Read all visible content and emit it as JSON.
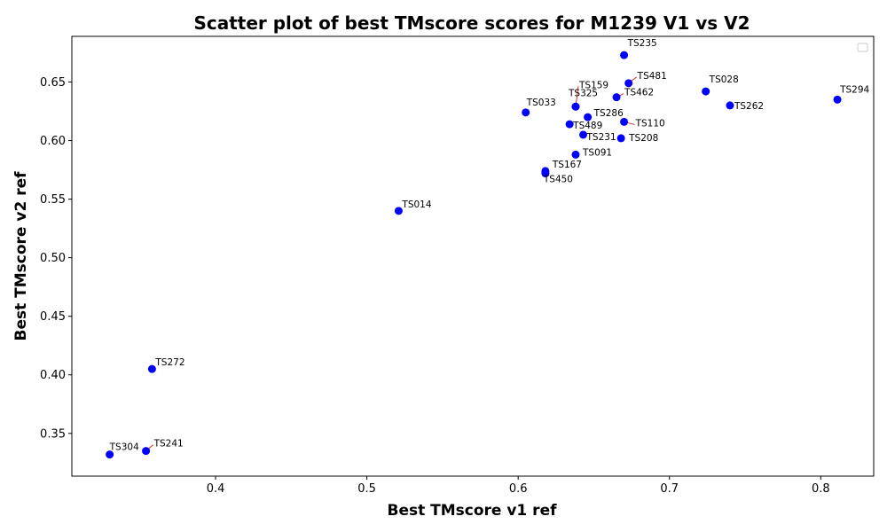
{
  "chart_data": {
    "type": "scatter",
    "title": "Scatter plot of best TMscore scores for M1239 V1 vs V2",
    "xlabel": "Best TMscore v1 ref",
    "ylabel": "Best TMscore v2 ref",
    "xlim": [
      0.305,
      0.835
    ],
    "ylim": [
      0.3135,
      0.689
    ],
    "xticks": [
      0.4,
      0.5,
      0.6,
      0.7,
      0.8
    ],
    "xtick_labels": [
      "0.4",
      "0.5",
      "0.6",
      "0.7",
      "0.8"
    ],
    "yticks": [
      0.35,
      0.4,
      0.45,
      0.5,
      0.55,
      0.6,
      0.65
    ],
    "ytick_labels": [
      "0.35",
      "0.40",
      "0.45",
      "0.50",
      "0.55",
      "0.60",
      "0.65"
    ],
    "grid": false,
    "legend": "top-right, empty",
    "marker_color": "#0000ff",
    "leader_line_color": "#d62728",
    "points": [
      {
        "label": "TS235",
        "x": 0.67,
        "y": 0.673
      },
      {
        "label": "TS481",
        "x": 0.673,
        "y": 0.649
      },
      {
        "label": "TS028",
        "x": 0.724,
        "y": 0.642
      },
      {
        "label": "TS294",
        "x": 0.811,
        "y": 0.635
      },
      {
        "label": "TS262",
        "x": 0.74,
        "y": 0.63
      },
      {
        "label": "TS462",
        "x": 0.665,
        "y": 0.637
      },
      {
        "label": "TS159",
        "x": 0.638,
        "y": 0.629
      },
      {
        "label": "TS325",
        "x": 0.638,
        "y": 0.629
      },
      {
        "label": "TS033",
        "x": 0.605,
        "y": 0.624
      },
      {
        "label": "TS286",
        "x": 0.646,
        "y": 0.62
      },
      {
        "label": "TS110",
        "x": 0.67,
        "y": 0.616
      },
      {
        "label": "TS489",
        "x": 0.634,
        "y": 0.614
      },
      {
        "label": "TS231",
        "x": 0.643,
        "y": 0.605
      },
      {
        "label": "TS208",
        "x": 0.668,
        "y": 0.602
      },
      {
        "label": "TS091",
        "x": 0.638,
        "y": 0.588
      },
      {
        "label": "TS167",
        "x": 0.618,
        "y": 0.574
      },
      {
        "label": "TS450",
        "x": 0.618,
        "y": 0.572
      },
      {
        "label": "TS014",
        "x": 0.521,
        "y": 0.54
      },
      {
        "label": "TS272",
        "x": 0.358,
        "y": 0.405
      },
      {
        "label": "TS241",
        "x": 0.354,
        "y": 0.335
      },
      {
        "label": "TS304",
        "x": 0.33,
        "y": 0.332
      }
    ]
  }
}
